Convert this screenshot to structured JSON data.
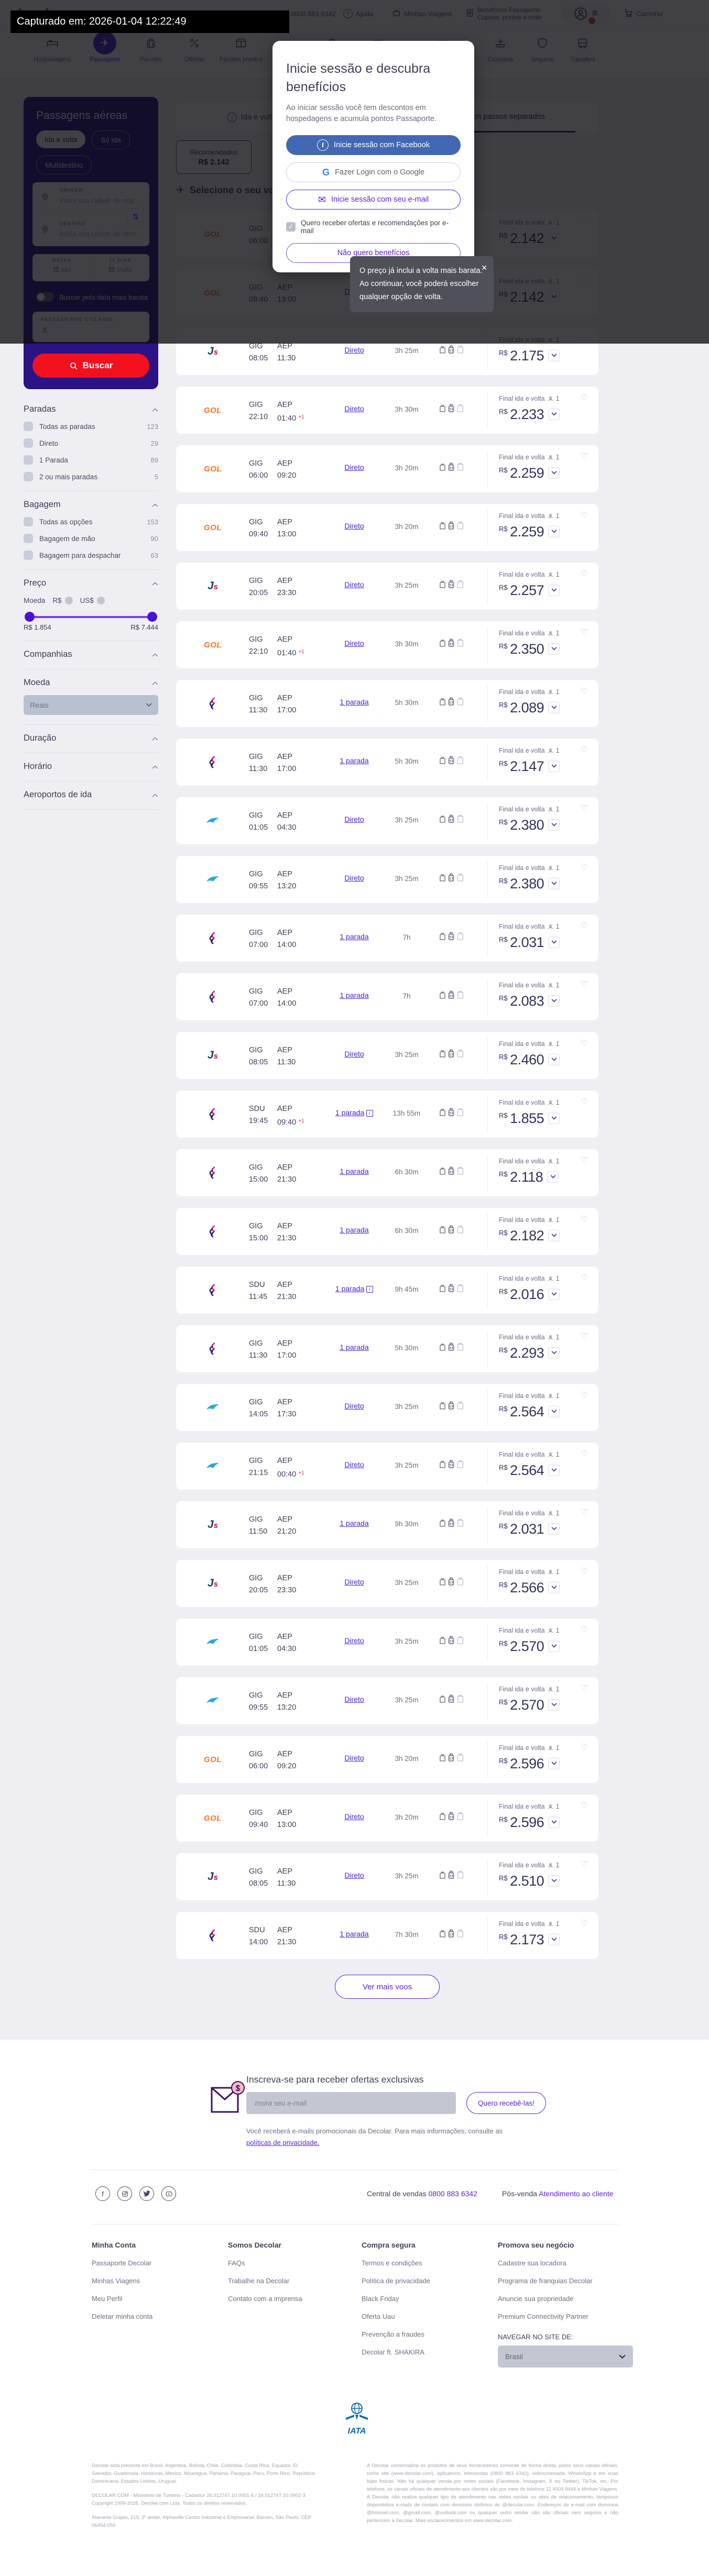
{
  "capture_bar": {
    "text": "Capturado em: 2026-01-04 12:22:49"
  },
  "header": {
    "topbar": {
      "logo": "decolar",
      "phone_label": "Vendas",
      "phone_number": "0800 883 6342",
      "help": "Ajuda",
      "trips": "Minhas Viagens",
      "benefits_line1": "Benefícios Passaporte",
      "benefits_line2": "Cupons, pontos e mais",
      "cart": "Carrinho",
      "notification_count": "1"
    },
    "nav": [
      {
        "label": "Hospedagens",
        "icon": "bed",
        "active": false
      },
      {
        "label": "Passagens",
        "icon": "plane",
        "active": true
      },
      {
        "label": "Pacotes",
        "icon": "suitcase",
        "active": false
      },
      {
        "label": "Ofertas",
        "icon": "percent",
        "active": false
      },
      {
        "label": "Pacotes prontos",
        "icon": "box",
        "active": false
      },
      {
        "label": "Carros",
        "icon": "car",
        "active": false
      },
      {
        "label": "Aluguel de temporada",
        "icon": "home",
        "active": false
      },
      {
        "label": "Atividades",
        "icon": "ticket",
        "active": false
      },
      {
        "label": "Disney e Universal",
        "icon": "castle",
        "active": false
      },
      {
        "label": "Cruzeiros",
        "icon": "ship",
        "active": false
      },
      {
        "label": "Seguros",
        "icon": "shield",
        "active": false
      },
      {
        "label": "Transfers",
        "icon": "bus",
        "active": false
      }
    ]
  },
  "login_modal": {
    "title": "Inicie sessão e descubra benefícios",
    "subtitle": "Ao iniciar sessão você tem descontos em hospedagens e acumula pontos Passaporte.",
    "facebook_button": "Inicie sessão com Facebook",
    "google_button": "Fazer Login com o Google",
    "email_button": "Inicie sessão com seu e-mail",
    "checkbox_label": "Quero receber ofertas e recomendações por e-mail",
    "checkbox_checked": true,
    "decline_button": "Não quero benefícios"
  },
  "price_tooltip": {
    "lines": [
      "O preço já inclui a volta mais barata.",
      "Ao continuar, você poderá escolher",
      "qualquer opção de volta."
    ]
  },
  "search_card": {
    "title": "Passagens aéreas",
    "trip_types": [
      {
        "label": "Ida e volta",
        "selected": true
      },
      {
        "label": "Só ida",
        "selected": false
      },
      {
        "label": "Multidestino",
        "selected": false
      }
    ],
    "origin_label": "ORIGEM",
    "origin_placeholder": "Insira sua cidade de orig...",
    "destination_label": "DESTINO",
    "destination_placeholder": "Insira sua cidade de dest...",
    "dates_label": "DATAS",
    "days_label": "17 DIAS",
    "date_out_placeholder": "Ida",
    "date_back_placeholder": "Volta",
    "cheapest_toggle_label": "Buscar pela data mais barata",
    "passengers_label": "PASSAGEIROS E CLASSE",
    "search_button": "Buscar"
  },
  "filters": {
    "sections": [
      {
        "title": "Paradas",
        "type": "checks",
        "rows": [
          {
            "label": "Todas as paradas",
            "count": "123"
          },
          {
            "label": "Direto",
            "count": "29"
          },
          {
            "label": "1 Parada",
            "count": "89"
          },
          {
            "label": "2 ou mais paradas",
            "count": "5"
          }
        ]
      },
      {
        "title": "Bagagem",
        "type": "checks",
        "rows": [
          {
            "label": "Todas as opções",
            "count": "153"
          },
          {
            "label": "Bagagem de mão",
            "count": "90"
          },
          {
            "label": "Bagagem para despachar",
            "count": "63"
          }
        ]
      },
      {
        "title": "Preço",
        "type": "price",
        "currency_label": "Moeda",
        "currency_options": [
          "R$",
          "US$"
        ],
        "min": "R$ 1.854",
        "max": "R$ 7.444"
      },
      {
        "title": "Companhias",
        "type": "collapsed"
      },
      {
        "title": "Moeda",
        "type": "select",
        "value": "Reais"
      },
      {
        "title": "Duração",
        "type": "collapsed"
      },
      {
        "title": "Horário",
        "type": "collapsed"
      },
      {
        "title": "Aeroportos de ida",
        "type": "collapsed"
      }
    ]
  },
  "results": {
    "banner": {
      "left_tab": "Ida e volta juntas",
      "right_tab": "Comprar a ida e volta em passos separados"
    },
    "recommended_tab": {
      "label": "Recomendados",
      "price": "R$ 2.142"
    },
    "heading": "Selecione o seu voo de ida",
    "fare_note": "Final ida e volta",
    "pax": "1",
    "currency": "R$",
    "airlines": {
      "GOL": {
        "name": "GOL"
      },
      "JS": {
        "name": "JetSmart"
      },
      "FB": {
        "name": "Flybondi"
      },
      "AR": {
        "name": "Aerolíneas Argentinas"
      }
    },
    "flights": [
      {
        "airline": "GOL",
        "from": "GIG",
        "dep": "06:00",
        "to": "AEP",
        "arr": "09:20",
        "next_day": false,
        "stops": "Direto",
        "stops_info": false,
        "duration": "3h 20m",
        "price": "2.142"
      },
      {
        "airline": "GOL",
        "from": "GIG",
        "dep": "09:40",
        "to": "AEP",
        "arr": "13:00",
        "next_day": false,
        "stops": "Direto",
        "stops_info": false,
        "duration": "3h 20m",
        "price": "2.142"
      },
      {
        "airline": "JS",
        "from": "GIG",
        "dep": "08:05",
        "to": "AEP",
        "arr": "11:30",
        "next_day": false,
        "stops": "Direto",
        "stops_info": false,
        "duration": "3h 25m",
        "price": "2.175"
      },
      {
        "airline": "GOL",
        "from": "GIG",
        "dep": "22:10",
        "to": "AEP",
        "arr": "01:40",
        "next_day": true,
        "stops": "Direto",
        "stops_info": false,
        "duration": "3h 30m",
        "price": "2.233"
      },
      {
        "airline": "GOL",
        "from": "GIG",
        "dep": "06:00",
        "to": "AEP",
        "arr": "09:20",
        "next_day": false,
        "stops": "Direto",
        "stops_info": false,
        "duration": "3h 20m",
        "price": "2.259"
      },
      {
        "airline": "GOL",
        "from": "GIG",
        "dep": "09:40",
        "to": "AEP",
        "arr": "13:00",
        "next_day": false,
        "stops": "Direto",
        "stops_info": false,
        "duration": "3h 20m",
        "price": "2.259"
      },
      {
        "airline": "JS",
        "from": "GIG",
        "dep": "20:05",
        "to": "AEP",
        "arr": "23:30",
        "next_day": false,
        "stops": "Direto",
        "stops_info": false,
        "duration": "3h 25m",
        "price": "2.257"
      },
      {
        "airline": "GOL",
        "from": "GIG",
        "dep": "22:10",
        "to": "AEP",
        "arr": "01:40",
        "next_day": true,
        "stops": "Direto",
        "stops_info": false,
        "duration": "3h 30m",
        "price": "2.350"
      },
      {
        "airline": "FB",
        "from": "GIG",
        "dep": "11:30",
        "to": "AEP",
        "arr": "17:00",
        "next_day": false,
        "stops": "1 parada",
        "stops_info": false,
        "duration": "5h 30m",
        "price": "2.089"
      },
      {
        "airline": "FB",
        "from": "GIG",
        "dep": "11:30",
        "to": "AEP",
        "arr": "17:00",
        "next_day": false,
        "stops": "1 parada",
        "stops_info": false,
        "duration": "5h 30m",
        "price": "2.147"
      },
      {
        "airline": "AR",
        "from": "GIG",
        "dep": "01:05",
        "to": "AEP",
        "arr": "04:30",
        "next_day": false,
        "stops": "Direto",
        "stops_info": false,
        "duration": "3h 25m",
        "price": "2.380"
      },
      {
        "airline": "AR",
        "from": "GIG",
        "dep": "09:55",
        "to": "AEP",
        "arr": "13:20",
        "next_day": false,
        "stops": "Direto",
        "stops_info": false,
        "duration": "3h 25m",
        "price": "2.380"
      },
      {
        "airline": "FB",
        "from": "GIG",
        "dep": "07:00",
        "to": "AEP",
        "arr": "14:00",
        "next_day": false,
        "stops": "1 parada",
        "stops_info": false,
        "duration": "7h",
        "price": "2.031"
      },
      {
        "airline": "FB",
        "from": "GIG",
        "dep": "07:00",
        "to": "AEP",
        "arr": "14:00",
        "next_day": false,
        "stops": "1 parada",
        "stops_info": false,
        "duration": "7h",
        "price": "2.083"
      },
      {
        "airline": "JS",
        "from": "GIG",
        "dep": "08:05",
        "to": "AEP",
        "arr": "11:30",
        "next_day": false,
        "stops": "Direto",
        "stops_info": false,
        "duration": "3h 25m",
        "price": "2.460"
      },
      {
        "airline": "FB",
        "from": "SDU",
        "dep": "19:45",
        "to": "AEP",
        "arr": "09:40",
        "next_day": true,
        "stops": "1 parada",
        "stops_info": true,
        "duration": "13h 55m",
        "price": "1.855"
      },
      {
        "airline": "FB",
        "from": "GIG",
        "dep": "15:00",
        "to": "AEP",
        "arr": "21:30",
        "next_day": false,
        "stops": "1 parada",
        "stops_info": false,
        "duration": "6h 30m",
        "price": "2.118"
      },
      {
        "airline": "FB",
        "from": "GIG",
        "dep": "15:00",
        "to": "AEP",
        "arr": "21:30",
        "next_day": false,
        "stops": "1 parada",
        "stops_info": false,
        "duration": "6h 30m",
        "price": "2.182"
      },
      {
        "airline": "FB",
        "from": "SDU",
        "dep": "11:45",
        "to": "AEP",
        "arr": "21:30",
        "next_day": false,
        "stops": "1 parada",
        "stops_info": true,
        "duration": "9h 45m",
        "price": "2.016"
      },
      {
        "airline": "FB",
        "from": "GIG",
        "dep": "11:30",
        "to": "AEP",
        "arr": "17:00",
        "next_day": false,
        "stops": "1 parada",
        "stops_info": false,
        "duration": "5h 30m",
        "price": "2.293"
      },
      {
        "airline": "AR",
        "from": "GIG",
        "dep": "14:05",
        "to": "AEP",
        "arr": "17:30",
        "next_day": false,
        "stops": "Direto",
        "stops_info": false,
        "duration": "3h 25m",
        "price": "2.564"
      },
      {
        "airline": "AR",
        "from": "GIG",
        "dep": "21:15",
        "to": "AEP",
        "arr": "00:40",
        "next_day": true,
        "stops": "Direto",
        "stops_info": false,
        "duration": "3h 25m",
        "price": "2.564"
      },
      {
        "airline": "JS",
        "from": "GIG",
        "dep": "11:50",
        "to": "AEP",
        "arr": "21:20",
        "next_day": false,
        "stops": "1 parada",
        "stops_info": false,
        "duration": "9h 30m",
        "price": "2.031"
      },
      {
        "airline": "JS",
        "from": "GIG",
        "dep": "20:05",
        "to": "AEP",
        "arr": "23:30",
        "next_day": false,
        "stops": "Direto",
        "stops_info": false,
        "duration": "3h 25m",
        "price": "2.566"
      },
      {
        "airline": "AR",
        "from": "GIG",
        "dep": "01:05",
        "to": "AEP",
        "arr": "04:30",
        "next_day": false,
        "stops": "Direto",
        "stops_info": false,
        "duration": "3h 25m",
        "price": "2.570"
      },
      {
        "airline": "AR",
        "from": "GIG",
        "dep": "09:55",
        "to": "AEP",
        "arr": "13:20",
        "next_day": false,
        "stops": "Direto",
        "stops_info": false,
        "duration": "3h 25m",
        "price": "2.570"
      },
      {
        "airline": "GOL",
        "from": "GIG",
        "dep": "06:00",
        "to": "AEP",
        "arr": "09:20",
        "next_day": false,
        "stops": "Direto",
        "stops_info": false,
        "duration": "3h 20m",
        "price": "2.596"
      },
      {
        "airline": "GOL",
        "from": "GIG",
        "dep": "09:40",
        "to": "AEP",
        "arr": "13:00",
        "next_day": false,
        "stops": "Direto",
        "stops_info": false,
        "duration": "3h 20m",
        "price": "2.596"
      },
      {
        "airline": "JS",
        "from": "GIG",
        "dep": "08:05",
        "to": "AEP",
        "arr": "11:30",
        "next_day": false,
        "stops": "Direto",
        "stops_info": false,
        "duration": "3h 25m",
        "price": "2.510"
      },
      {
        "airline": "FB",
        "from": "SDU",
        "dep": "14:00",
        "to": "AEP",
        "arr": "21:30",
        "next_day": false,
        "stops": "1 parada",
        "stops_info": false,
        "duration": "7h 30m",
        "price": "2.173"
      }
    ],
    "more_button": "Ver mais voos"
  },
  "newsletter": {
    "title": "Inscreva-se para receber ofertas exclusivas",
    "placeholder": "Insira seu e-mail",
    "button": "Quero recebê-las!",
    "caption": "Você receberá e-mails promocionais da Decolar. Para mais informações, consulte as",
    "caption_link": "políticas de privacidade."
  },
  "contact": {
    "sales_label": "Central de vendas",
    "sales_phone": "0800 883 6342",
    "after_label": "Pós-venda",
    "after_link": "Atendimento ao cliente"
  },
  "footer": {
    "columns": [
      {
        "title": "Minha Conta",
        "links": [
          "Passaporte Decolar",
          "Minhas Viagens",
          "Meu Perfil",
          "Deletar minha conta"
        ]
      },
      {
        "title": "Somos Decolar",
        "links": [
          "FAQs",
          "Trabalhe na Decolar",
          "Contato com a imprensa"
        ]
      },
      {
        "title": "Compra segura",
        "links": [
          "Termos e condições",
          "Política de privacidade",
          "Black Friday",
          "Oferta Uau",
          "Prevenção a fraudes",
          "Decolar ft. SHAKIRA"
        ]
      },
      {
        "title": "Promova seu negócio",
        "links": [
          "Cadastre sua locadora",
          "Programa de franquias Decolar",
          "Anuncie sua propriedade",
          "Premium Connectivity Partner"
        ]
      }
    ],
    "region_label": "NAVEGAR NO SITE DE:",
    "region_value": "Brasil",
    "iata_label": "IATA",
    "social": [
      "facebook",
      "instagram",
      "twitter",
      "youtube"
    ]
  },
  "legal": {
    "countries": "Decolar está presente em Brasil, Argentina, Bolívia, Chile, Colômbia, Costa Rica, Equador, El Salvador, Guatemala, Honduras, México, Nicarágua, Panamá, Paraguai, Peru, Porto Rico, República Dominicana, Estados Unidos, Uruguai.",
    "registry": "DECOLAR.COM - Ministério de Turismo - Cadastur 26.012747.10.0001-6 / 26.012747.10.0002-3 Copyright 1999-2026. Decolar.com Ltda. Todos os direitos reservados.",
    "address": "Alameda Grajaú, 219, 2º andar, Alphaville Centro Industrial e Empresarial, Barueri, São Paulo, CEP 06454-050",
    "right_text": "A Decolar comercializa os produtos de seus fornecedores somente de forma direta, pelos seus canais oficiais, como site (www.decolar.com), aplicativos, televendas (0800 883 6342), videochamada, WhatsApp e em suas lojas físicas. Não há qualquer venda por redes sociais (Facebook, Instagram, X ou Twitter), TikTok, etc. Por telefone, os canais oficiais de atendimento aos clientes são por meio do telefone 11 4003 9444 e Minhas Viagens. A Decolar não realiza qualquer tipo de atendimento nas redes sociais ou sites de relacionamento, tampouco disponibiliza e-mails de contato com domínios distintos de @decolar.com. Endereços de e-mail com domínios @hotmail.com, @gmail.com, @outlook.com ou qualquer outro similar não são oficiais nem seguros e não pertencem à Decolar. Mais esclarecimentos em www.decolar.com."
  }
}
